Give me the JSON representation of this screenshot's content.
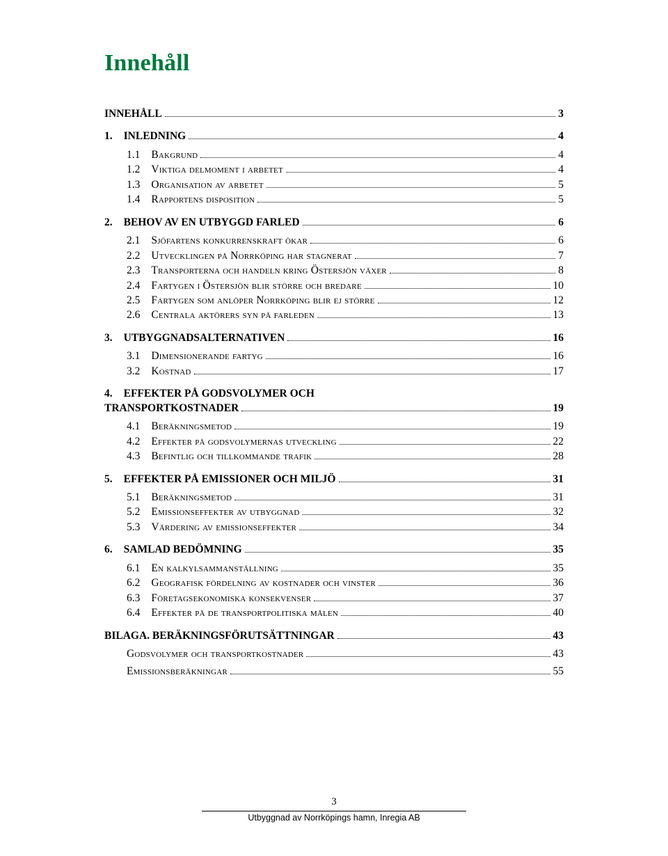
{
  "colors": {
    "title": "#007a3d",
    "text": "#000000",
    "background": "#ffffff"
  },
  "title": "Innehåll",
  "toc": [
    {
      "type": "h1",
      "label": "INNEHÅLL",
      "page": "3"
    },
    {
      "type": "h1",
      "num": "1.",
      "label": "INLEDNING",
      "page": "4"
    },
    {
      "type": "h2",
      "num": "1.1",
      "label": "Bakgrund",
      "page": "4"
    },
    {
      "type": "h2",
      "num": "1.2",
      "label": "Viktiga delmoment i arbetet",
      "page": "4"
    },
    {
      "type": "h2",
      "num": "1.3",
      "label": "Organisation av arbetet",
      "page": "5"
    },
    {
      "type": "h2",
      "num": "1.4",
      "label": "Rapportens disposition",
      "page": "5"
    },
    {
      "type": "h1",
      "num": "2.",
      "label": "BEHOV AV EN UTBYGGD FARLED",
      "page": "6"
    },
    {
      "type": "h2",
      "num": "2.1",
      "label": "Sjöfartens konkurrenskraft ökar",
      "page": "6"
    },
    {
      "type": "h2",
      "num": "2.2",
      "label": "Utvecklingen på Norrköping har stagnerat",
      "page": "7"
    },
    {
      "type": "h2",
      "num": "2.3",
      "label": "Transporterna och handeln kring Östersjön växer",
      "page": "8"
    },
    {
      "type": "h2",
      "num": "2.4",
      "label": "Fartygen i Östersjön blir större och bredare",
      "page": "10"
    },
    {
      "type": "h2",
      "num": "2.5",
      "label": "Fartygen som anlöper Norrköping blir ej större",
      "page": "12"
    },
    {
      "type": "h2",
      "num": "2.6",
      "label": "Centrala aktörers syn på farleden",
      "page": "13"
    },
    {
      "type": "h1",
      "num": "3.",
      "label": "UTBYGGNADSALTERNATIVEN",
      "page": "16"
    },
    {
      "type": "h2",
      "num": "3.1",
      "label": "Dimensionerande fartyg",
      "page": "16"
    },
    {
      "type": "h2",
      "num": "3.2",
      "label": "Kostnad",
      "page": "17"
    },
    {
      "type": "h1-ml",
      "num": "4.",
      "label1": "EFFEKTER PÅ GODSVOLYMER OCH",
      "label2": "TRANSPORTKOSTNADER",
      "page": "19"
    },
    {
      "type": "h2",
      "num": "4.1",
      "label": "Beräkningsmetod",
      "page": "19"
    },
    {
      "type": "h2",
      "num": "4.2",
      "label": "Effekter på godsvolymernas utveckling",
      "page": "22"
    },
    {
      "type": "h2",
      "num": "4.3",
      "label": "Befintlig och tillkommande trafik",
      "page": "28"
    },
    {
      "type": "h1",
      "num": "5.",
      "label": "EFFEKTER PÅ EMISSIONER OCH MILJÖ",
      "page": "31"
    },
    {
      "type": "h2",
      "num": "5.1",
      "label": "Beräkningsmetod",
      "page": "31"
    },
    {
      "type": "h2",
      "num": "5.2",
      "label": "Emissionseffekter av utbyggnad",
      "page": "32"
    },
    {
      "type": "h2",
      "num": "5.3",
      "label": "Värdering av emissionseffekter",
      "page": "34"
    },
    {
      "type": "h1",
      "num": "6.",
      "label": "SAMLAD BEDÖMNING",
      "page": "35"
    },
    {
      "type": "h2",
      "num": "6.1",
      "label": "En kalkylsammanställning",
      "page": "35"
    },
    {
      "type": "h2",
      "num": "6.2",
      "label": "Geografisk fördelning av kostnader och vinster",
      "page": "36"
    },
    {
      "type": "h2",
      "num": "6.3",
      "label": "Företagsekonomiska konsekvenser",
      "page": "37"
    },
    {
      "type": "h2",
      "num": "6.4",
      "label": "Effekter på de transportpolitiska målen",
      "page": "40"
    },
    {
      "type": "h1",
      "label": "BILAGA. BERÄKNINGSFÖRUTSÄTTNINGAR",
      "page": "43"
    },
    {
      "type": "h2b",
      "label": "Godsvolymer och transportkostnader",
      "page": "43"
    },
    {
      "type": "h2b",
      "label": "Emissionsberäkningar",
      "page": "55"
    }
  ],
  "footer": {
    "pageNumber": "3",
    "text": "Utbyggnad av Norrköpings hamn, Inregia AB"
  }
}
